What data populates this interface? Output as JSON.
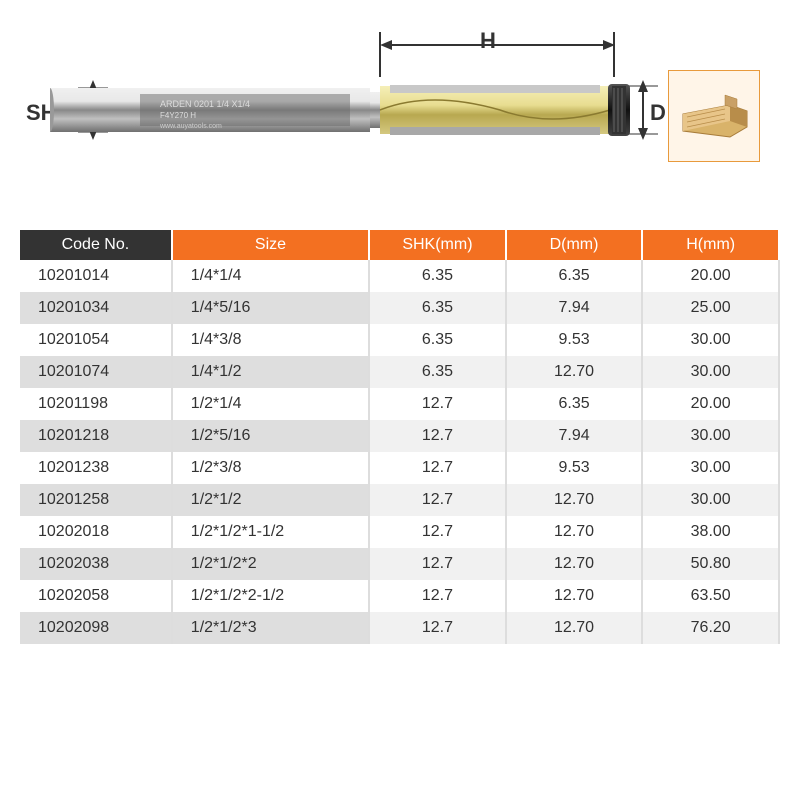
{
  "diagram": {
    "shk_label": "SHK",
    "h_label": "H",
    "d_label": "D",
    "colors": {
      "label": "#333333",
      "arrow": "#333333",
      "wood_border": "#e89a3c",
      "wood_bg": "#fff5e8",
      "shank_body": "#b0b0b0",
      "shank_highlight": "#e0e0e0",
      "cutter_body": "#d4c06a",
      "cutter_highlight": "#f0e8b0",
      "bearing": "#222222"
    }
  },
  "table": {
    "header_bg": "#333333",
    "accent_bg": "#f37021",
    "header_fg": "#ffffff",
    "row_even_bg": "#f1f1f1",
    "row_odd_bg": "#ffffff",
    "col_even_bg": "#dedede",
    "font_size": 16,
    "columns": [
      "Code No.",
      "Size",
      "SHK(mm)",
      "D(mm)",
      "H(mm)"
    ],
    "column_accent": [
      false,
      true,
      true,
      true,
      true
    ],
    "rows": [
      [
        "10201014",
        "1/4*1/4",
        "6.35",
        "6.35",
        "20.00"
      ],
      [
        "10201034",
        "1/4*5/16",
        "6.35",
        "7.94",
        "25.00"
      ],
      [
        "10201054",
        "1/4*3/8",
        "6.35",
        "9.53",
        "30.00"
      ],
      [
        "10201074",
        "1/4*1/2",
        "6.35",
        "12.70",
        "30.00"
      ],
      [
        "10201198",
        "1/2*1/4",
        "12.7",
        "6.35",
        "20.00"
      ],
      [
        "10201218",
        "1/2*5/16",
        "12.7",
        "7.94",
        "30.00"
      ],
      [
        "10201238",
        "1/2*3/8",
        "12.7",
        "9.53",
        "30.00"
      ],
      [
        "10201258",
        "1/2*1/2",
        "12.7",
        "12.70",
        "30.00"
      ],
      [
        "10202018",
        "1/2*1/2*1-1/2",
        "12.7",
        "12.70",
        "38.00"
      ],
      [
        "10202038",
        "1/2*1/2*2",
        "12.7",
        "12.70",
        "50.80"
      ],
      [
        "10202058",
        "1/2*1/2*2-1/2",
        "12.7",
        "12.70",
        "63.50"
      ],
      [
        "10202098",
        "1/2*1/2*3",
        "12.7",
        "12.70",
        "76.20"
      ]
    ]
  }
}
